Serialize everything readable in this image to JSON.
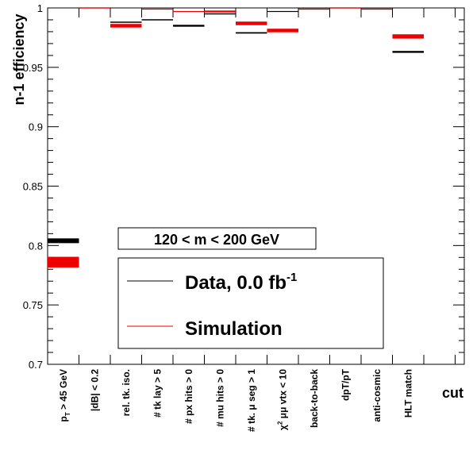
{
  "chart_data": {
    "type": "scatter",
    "title": "",
    "xlabel": "cut",
    "ylabel": "n-1 efficiency",
    "ylim": [
      0.7,
      1.0
    ],
    "yticks": [
      "0.7",
      "0.75",
      "0.8",
      "0.85",
      "0.9",
      "0.95",
      "1"
    ],
    "categories": [
      {
        "pre": "p",
        "sub": "T",
        "post": " > 45 GeV"
      },
      {
        "pre": "|dB| < 0.2"
      },
      {
        "pre": "rel. tk. iso."
      },
      {
        "pre": "# tk lay > 5"
      },
      {
        "pre": "# px hits > 0"
      },
      {
        "pre": "# mu hits > 0"
      },
      {
        "pre": "# tk. μ seg > 1"
      },
      {
        "pre": "χ",
        "sup": "2",
        "post": " μμ vtx < 10"
      },
      {
        "pre": "back-to-back"
      },
      {
        "pre": "dpT/pT"
      },
      {
        "pre": "anti-cosmic"
      },
      {
        "pre": "HLT match"
      }
    ],
    "series": [
      {
        "name": "Data, 0.0 fb",
        "name_sup": "-1",
        "color": "#000000",
        "values": [
          0.804,
          1.0,
          0.988,
          0.99,
          0.985,
          0.995,
          0.979,
          0.997,
          0.999,
          1.0,
          0.999,
          0.963
        ],
        "half_error": [
          0.002,
          0.0004,
          0.0005,
          0.0005,
          0.0008,
          0.0005,
          0.0006,
          0.0004,
          0.0004,
          0.0004,
          0.0004,
          0.0008
        ]
      },
      {
        "name": "Simulation",
        "color": "#ee0000",
        "values": [
          0.786,
          1.0,
          0.985,
          0.999,
          0.997,
          0.997,
          0.987,
          0.981,
          0.999,
          1.0,
          0.999,
          0.976
        ],
        "half_error": [
          0.0045,
          0.0004,
          0.0015,
          0.0004,
          0.0004,
          0.0008,
          0.0015,
          0.0015,
          0.0004,
          0.0004,
          0.0004,
          0.0018
        ]
      }
    ],
    "annotation": "120 < m < 200 GeV",
    "legend_position": "bottom-center",
    "grid": false
  }
}
